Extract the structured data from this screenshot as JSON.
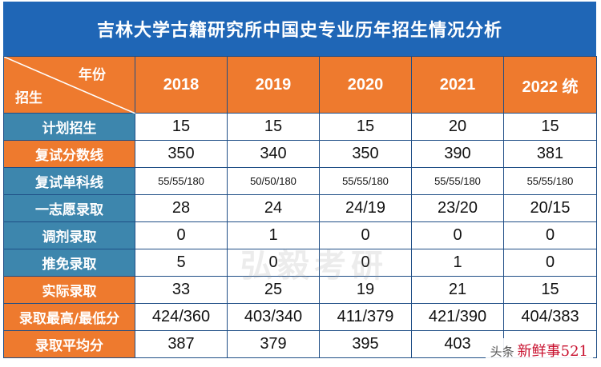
{
  "title": "吉林大学古籍研究所中国史专业历年招生情况分析",
  "corner": {
    "top_right": "年份",
    "bottom_left": "招生"
  },
  "years": [
    "2018",
    "2019",
    "2020",
    "2021",
    "2022 统"
  ],
  "rows": [
    {
      "label": "计划招生",
      "style": "blue",
      "values": [
        "15",
        "15",
        "15",
        "20",
        "15"
      ]
    },
    {
      "label": "复试分数线",
      "style": "orange",
      "values": [
        "350",
        "340",
        "350",
        "390",
        "381"
      ]
    },
    {
      "label": "复试单科线",
      "style": "blue",
      "values": [
        "55/55/180",
        "50/50/180",
        "55/55/180",
        "55/55/180",
        "55/55/180"
      ]
    },
    {
      "label": "一志愿录取",
      "style": "blue",
      "values": [
        "28",
        "24",
        "24/19",
        "23/20",
        "20/15"
      ]
    },
    {
      "label": "调剂录取",
      "style": "blue",
      "values": [
        "0",
        "1",
        "0",
        "0",
        "0"
      ]
    },
    {
      "label": "推免录取",
      "style": "blue",
      "values": [
        "5",
        "0",
        "0",
        "1",
        "0"
      ]
    },
    {
      "label": "实际录取",
      "style": "orange",
      "values": [
        "33",
        "25",
        "19",
        "21",
        "15"
      ]
    },
    {
      "label": "录取最高/最低分",
      "style": "orange",
      "values": [
        "424/360",
        "403/340",
        "411/379",
        "421/390",
        "404/383"
      ]
    },
    {
      "label": "录取平均分",
      "style": "orange",
      "values": [
        "387",
        "379",
        "395",
        "403",
        ""
      ]
    }
  ],
  "watermark": "弘毅考研",
  "badge": {
    "source": "头条",
    "text": "新鲜事521"
  },
  "colors": {
    "title_bg": "#1f66b6",
    "blue_cell": "#3d86ad",
    "orange_cell": "#ee7a2e",
    "border": "#1f4e86"
  }
}
